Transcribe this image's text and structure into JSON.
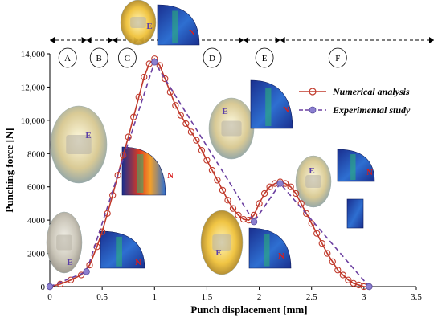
{
  "chart_data": {
    "type": "line",
    "xlabel": "Punch displacement [mm]",
    "ylabel": "Punching force [N]",
    "xlim": [
      0,
      3.5
    ],
    "ylim": [
      0,
      14000
    ],
    "x_ticks": [
      "0",
      "0.5",
      "1",
      "1.5",
      "2",
      "2.5",
      "3",
      "3.5"
    ],
    "y_ticks": [
      "0",
      "2000",
      "4000",
      "6000",
      "8000",
      "10,000",
      "12,000",
      "14,000"
    ],
    "grid": false,
    "legend_position": "right",
    "regions": [
      "A",
      "B",
      "C",
      "D",
      "E",
      "F"
    ],
    "series": [
      {
        "name": "Numerical analysis",
        "color": "#c0392b",
        "style": "solid line with open circle markers",
        "x": [
          0,
          0.1,
          0.2,
          0.3,
          0.38,
          0.45,
          0.5,
          0.55,
          0.6,
          0.65,
          0.7,
          0.75,
          0.8,
          0.85,
          0.9,
          0.95,
          1.0,
          1.05,
          1.1,
          1.15,
          1.2,
          1.25,
          1.3,
          1.35,
          1.4,
          1.45,
          1.5,
          1.55,
          1.6,
          1.65,
          1.7,
          1.75,
          1.8,
          1.85,
          1.9,
          1.95,
          2.0,
          2.05,
          2.1,
          2.15,
          2.2,
          2.25,
          2.3,
          2.35,
          2.4,
          2.45,
          2.5,
          2.55,
          2.6,
          2.65,
          2.7,
          2.75,
          2.8,
          2.85,
          2.9,
          2.95,
          3.0,
          3.05
        ],
        "y": [
          0,
          150,
          400,
          700,
          1300,
          2400,
          3300,
          4400,
          5500,
          6700,
          7900,
          9000,
          10200,
          11400,
          12600,
          13400,
          13700,
          13300,
          12500,
          11700,
          10900,
          10300,
          9800,
          9300,
          8800,
          8200,
          7600,
          7000,
          6400,
          5800,
          5200,
          4700,
          4300,
          4050,
          4000,
          4300,
          5000,
          5600,
          6000,
          6200,
          6300,
          6200,
          6000,
          5600,
          5000,
          4400,
          3800,
          3200,
          2600,
          2000,
          1500,
          1000,
          700,
          400,
          200,
          100,
          0,
          0
        ]
      },
      {
        "name": "Experimental study",
        "color": "#6b3fa0",
        "style": "dashed line with filled circle markers",
        "x": [
          0,
          0.35,
          1.0,
          1.95,
          2.2,
          3.05
        ],
        "y": [
          0,
          900,
          13500,
          3900,
          6200,
          0
        ]
      }
    ]
  },
  "figure": {
    "labels": {
      "experimental": "E",
      "numerical": "N"
    }
  }
}
